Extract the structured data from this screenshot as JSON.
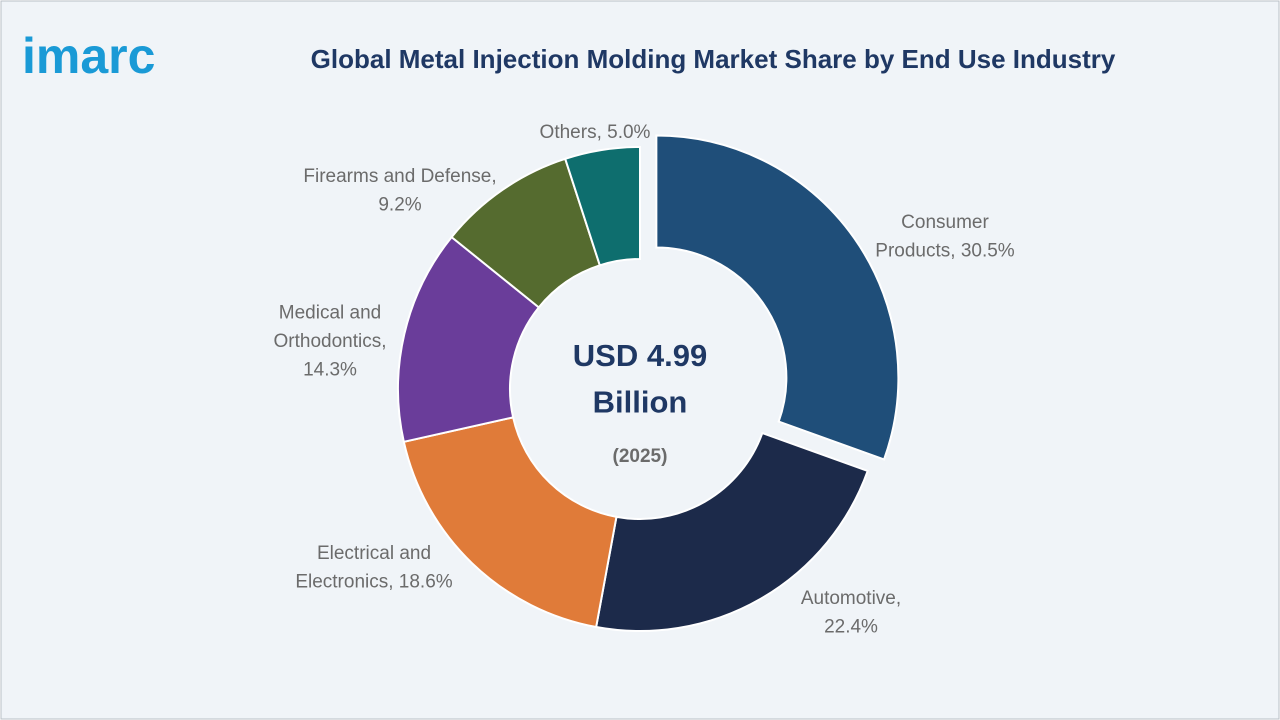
{
  "logo": "imarc",
  "chart_data": {
    "type": "donut",
    "title": "Global Metal Injection Molding Market Share by End Use Industry",
    "center_text": "USD 4.99\nBillion",
    "center_subtext": "(2025)",
    "values": [
      30.5,
      22.4,
      18.6,
      14.3,
      9.2,
      5.0
    ],
    "value_labels": [
      "Consumer\nProducts, 30.5%",
      "Automotive,\n22.4%",
      "Electrical and\nElectronics, 18.6%",
      "Medical and\nOrthodontics,\n14.3%",
      "Firearms and Defense,\n9.2%",
      "Others, 5.0%"
    ],
    "colors": [
      "#1f4e79",
      "#1c2a4a",
      "#e07b39",
      "#6a3d9a",
      "#556b2f",
      "#0e6e6e"
    ]
  }
}
